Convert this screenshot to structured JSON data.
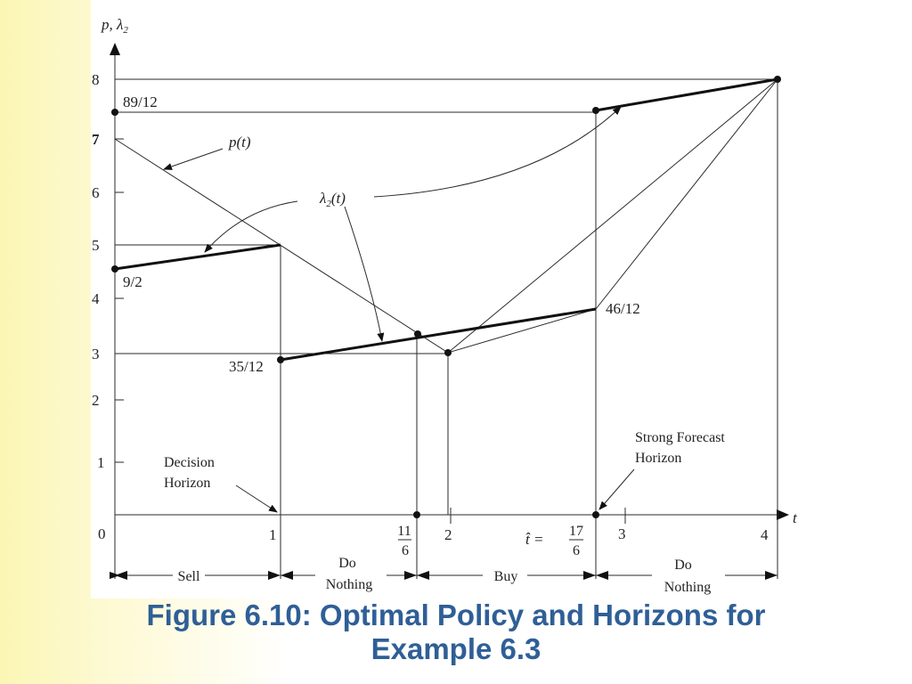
{
  "figure": {
    "y_axis_label": "p, λ",
    "y_axis_label_sub": "2",
    "x_axis_label": "t",
    "y_ticks": [
      "1",
      "2",
      "3",
      "4",
      "5",
      "6",
      "7",
      "8"
    ],
    "x_ticks": [
      "0",
      "1",
      "2",
      "3",
      "4"
    ],
    "x_fraction_11_6": {
      "num": "11",
      "den": "6"
    },
    "t_hat_label": "t̂ =",
    "x_fraction_17_6": {
      "num": "17",
      "den": "6"
    },
    "point_labels": {
      "v89_12": "89/12",
      "v9_2": "9/2",
      "v35_12": "35/12",
      "v46_12": "46/12"
    },
    "curve_label_p": "p(t)",
    "curve_label_lambda": "λ",
    "curve_label_lambda_sub": "2",
    "curve_label_lambda_arg": "(t)",
    "decision_horizon": [
      "Decision",
      "Horizon"
    ],
    "forecast_horizon": [
      "Strong Forecast",
      "Horizon"
    ],
    "policy_segments": {
      "sell": "Sell",
      "do_nothing_1": [
        "Do",
        "Nothing"
      ],
      "buy": "Buy",
      "do_nothing_2": [
        "Do",
        "Nothing"
      ]
    },
    "chart_data": {
      "type": "line",
      "xlabel": "t",
      "ylabel": "p, λ2",
      "xlim": [
        0,
        4
      ],
      "ylim": [
        0,
        8
      ],
      "series": [
        {
          "name": "p(t)",
          "x": [
            0,
            2,
            4
          ],
          "y": [
            7,
            3,
            8
          ]
        },
        {
          "name": "λ2(t)",
          "segments": [
            {
              "x": [
                0,
                1
              ],
              "y": [
                4.5,
                5
              ]
            },
            {
              "x": [
                1,
                2.8333
              ],
              "y": [
                2.9167,
                3.8333
              ]
            },
            {
              "x": [
                2.8333,
                4
              ],
              "y": [
                7.4167,
                8
              ]
            }
          ]
        }
      ],
      "intervals": [
        {
          "from": 0,
          "to": 1,
          "policy": "Sell"
        },
        {
          "from": 1,
          "to": 1.8333,
          "policy": "Do Nothing"
        },
        {
          "from": 1.8333,
          "to": 2.8333,
          "policy": "Buy"
        },
        {
          "from": 2.8333,
          "to": 4,
          "policy": "Do Nothing"
        }
      ]
    }
  },
  "caption": {
    "line1": "Figure 6.10: Optimal Policy and Horizons for",
    "line2": "Example 6.3"
  }
}
